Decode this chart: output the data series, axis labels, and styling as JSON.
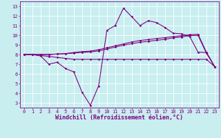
{
  "xlabel": "Windchill (Refroidissement éolien,°C)",
  "bg_color": "#c8eef0",
  "line_color": "#800080",
  "grid_color": "#ffffff",
  "x_ticks": [
    0,
    1,
    2,
    3,
    4,
    5,
    6,
    7,
    8,
    9,
    10,
    11,
    12,
    13,
    14,
    15,
    16,
    17,
    18,
    19,
    20,
    21,
    22,
    23
  ],
  "y_ticks": [
    3,
    4,
    5,
    6,
    7,
    8,
    9,
    10,
    11,
    12,
    13
  ],
  "ylim": [
    2.5,
    13.5
  ],
  "xlim": [
    -0.5,
    23.5
  ],
  "line1_y": [
    8.0,
    8.0,
    7.85,
    7.0,
    7.2,
    6.55,
    6.2,
    4.1,
    2.75,
    4.75,
    10.5,
    11.0,
    12.8,
    11.9,
    11.0,
    11.5,
    11.3,
    10.8,
    10.2,
    10.15,
    9.85,
    8.25,
    8.2,
    6.75
  ],
  "line2_y": [
    8.0,
    8.0,
    8.0,
    8.0,
    8.05,
    8.1,
    8.2,
    8.3,
    8.35,
    8.5,
    8.7,
    8.9,
    9.1,
    9.3,
    9.45,
    9.55,
    9.65,
    9.75,
    9.85,
    9.95,
    10.05,
    10.1,
    8.25,
    6.75
  ],
  "line3_y": [
    8.0,
    8.0,
    8.0,
    8.0,
    8.05,
    8.07,
    8.15,
    8.22,
    8.27,
    8.37,
    8.57,
    8.77,
    8.97,
    9.12,
    9.27,
    9.37,
    9.47,
    9.57,
    9.72,
    9.82,
    9.97,
    9.97,
    8.15,
    6.75
  ],
  "line4_y": [
    8.0,
    8.0,
    7.9,
    7.8,
    7.7,
    7.6,
    7.5,
    7.5,
    7.5,
    7.5,
    7.5,
    7.5,
    7.5,
    7.5,
    7.5,
    7.5,
    7.5,
    7.5,
    7.5,
    7.5,
    7.5,
    7.5,
    7.5,
    6.75
  ],
  "marker": "D",
  "markersize": 1.8,
  "linewidth": 0.8,
  "tick_fontsize": 5.0,
  "label_fontsize": 6.0
}
